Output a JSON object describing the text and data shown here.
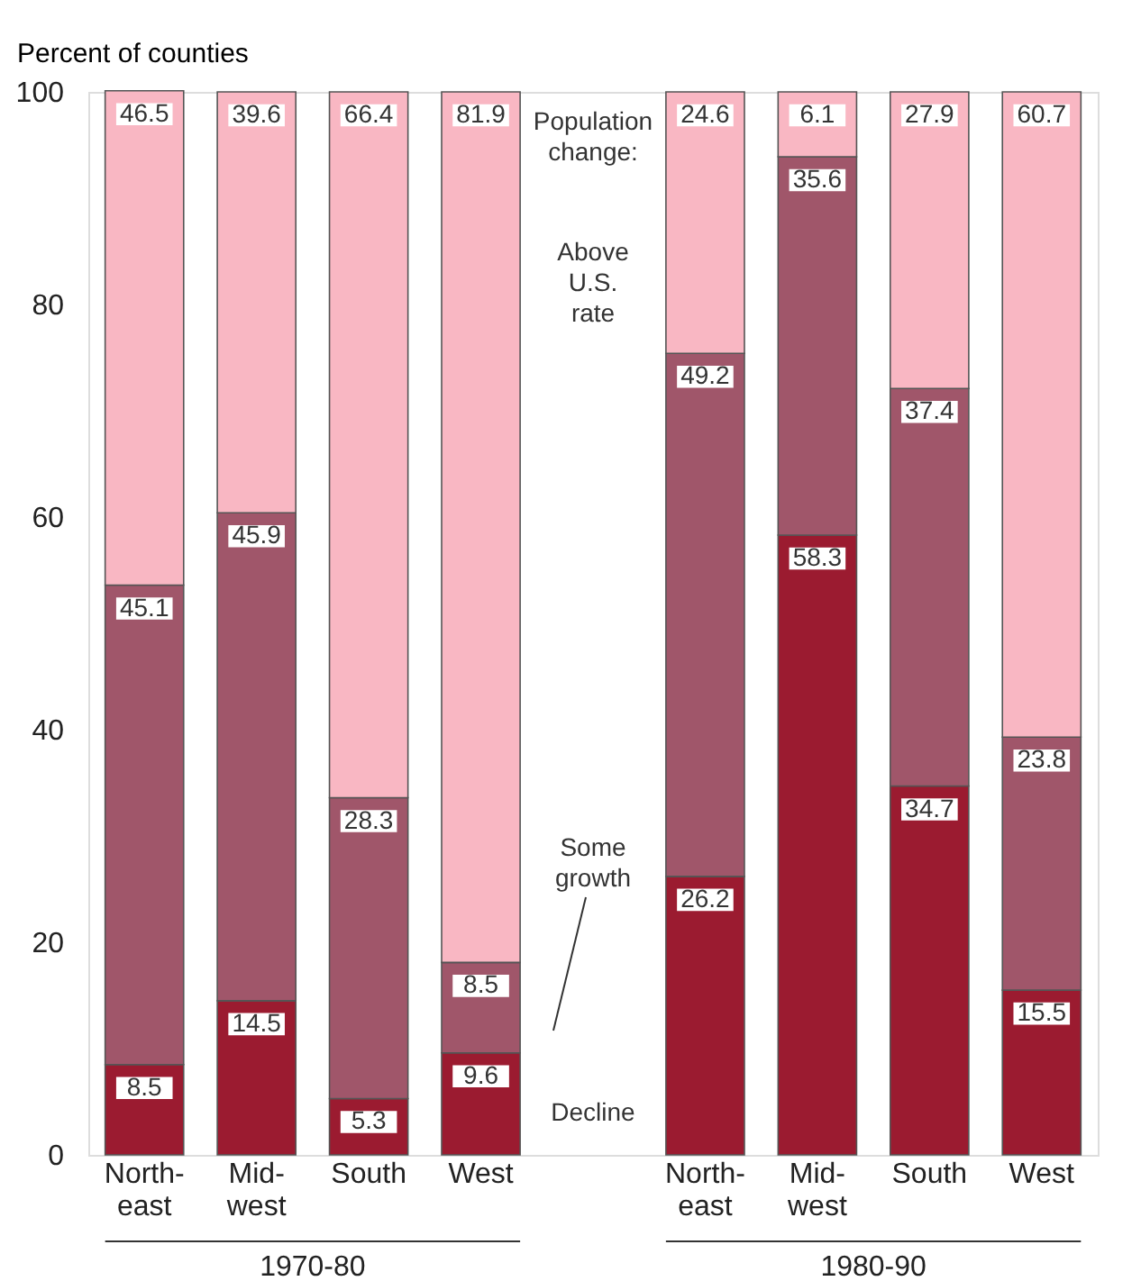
{
  "chart_data": {
    "type": "bar",
    "stacked": true,
    "data_labels": true,
    "ylabel": "Percent of counties",
    "legend_title": "Population change:",
    "categories": [
      "North-east",
      "Mid-west",
      "South",
      "West",
      null,
      "North-east",
      "Mid-west",
      "South",
      "West"
    ],
    "series": [
      {
        "name": "Decline",
        "color": "#9b1b30",
        "values": [
          8.5,
          14.5,
          5.3,
          9.6,
          null,
          26.2,
          58.3,
          34.7,
          15.5
        ]
      },
      {
        "name": "Some growth",
        "color": "#a0566a",
        "values": [
          45.1,
          45.9,
          28.3,
          8.5,
          null,
          49.2,
          35.6,
          37.4,
          23.8
        ]
      },
      {
        "name": "Above U.S. rate",
        "color": "#f9b7c3",
        "values": [
          46.5,
          39.6,
          66.4,
          81.9,
          null,
          24.6,
          6.1,
          27.9,
          60.7
        ]
      }
    ],
    "annotations": [
      "1970-80",
      "1980-90"
    ],
    "ylim": [
      0,
      100
    ],
    "yticks": [
      0,
      20,
      40,
      60,
      80,
      100
    ],
    "grid": false
  }
}
